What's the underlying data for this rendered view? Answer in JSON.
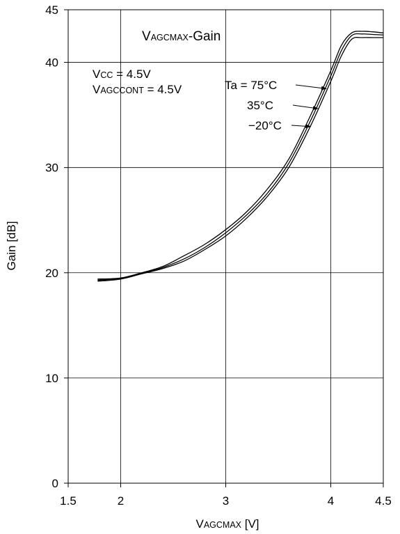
{
  "chart_data": {
    "type": "line",
    "title": {
      "main": "V",
      "sub": "AGCMAX",
      "suffix": "-Gain"
    },
    "xlabel": {
      "main": "V",
      "sub": "AGCMAX",
      "suffix": " [V]"
    },
    "ylabel": "Gain [dB]",
    "xlim": [
      1.5,
      4.5
    ],
    "ylim": [
      0,
      45
    ],
    "x_ticks": [
      "1.5",
      "2",
      "3",
      "4",
      "4.5"
    ],
    "x_tick_values": [
      1.5,
      2,
      3,
      4,
      4.5
    ],
    "y_ticks": [
      "0",
      "10",
      "20",
      "30",
      "40",
      "45"
    ],
    "y_tick_values": [
      0,
      10,
      20,
      30,
      40,
      45
    ],
    "grid": true,
    "conditions": [
      {
        "main": "V",
        "sub": "CC",
        "suffix": " = 4.5V"
      },
      {
        "main": "V",
        "sub": "AGCCONT",
        "suffix": " = 4.5V"
      }
    ],
    "series": [
      {
        "name": "Ta = 75°C",
        "values": [
          [
            1.78,
            19.4
          ],
          [
            2.0,
            19.5
          ],
          [
            2.2,
            20.0
          ],
          [
            2.4,
            20.6
          ],
          [
            2.6,
            21.6
          ],
          [
            2.8,
            22.7
          ],
          [
            3.0,
            24.1
          ],
          [
            3.2,
            25.8
          ],
          [
            3.4,
            28.0
          ],
          [
            3.6,
            30.8
          ],
          [
            3.8,
            34.8
          ],
          [
            4.0,
            39.2
          ],
          [
            4.1,
            41.6
          ],
          [
            4.2,
            42.8
          ],
          [
            4.3,
            42.95
          ],
          [
            4.4,
            42.9
          ],
          [
            4.5,
            42.8
          ]
        ]
      },
      {
        "name": "35°C",
        "values": [
          [
            1.78,
            19.3
          ],
          [
            2.0,
            19.45
          ],
          [
            2.2,
            19.95
          ],
          [
            2.4,
            20.5
          ],
          [
            2.6,
            21.3
          ],
          [
            2.8,
            22.4
          ],
          [
            3.0,
            23.8
          ],
          [
            3.2,
            25.5
          ],
          [
            3.4,
            27.6
          ],
          [
            3.6,
            30.4
          ],
          [
            3.8,
            34.3
          ],
          [
            4.0,
            38.7
          ],
          [
            4.1,
            41.1
          ],
          [
            4.2,
            42.55
          ],
          [
            4.3,
            42.7
          ],
          [
            4.4,
            42.65
          ],
          [
            4.5,
            42.6
          ]
        ]
      },
      {
        "name": "−20°C",
        "values": [
          [
            1.78,
            19.2
          ],
          [
            2.0,
            19.4
          ],
          [
            2.2,
            19.9
          ],
          [
            2.4,
            20.4
          ],
          [
            2.6,
            21.1
          ],
          [
            2.8,
            22.2
          ],
          [
            3.0,
            23.5
          ],
          [
            3.2,
            25.2
          ],
          [
            3.4,
            27.3
          ],
          [
            3.6,
            30.0
          ],
          [
            3.8,
            33.8
          ],
          [
            4.0,
            38.2
          ],
          [
            4.1,
            40.6
          ],
          [
            4.2,
            42.2
          ],
          [
            4.3,
            42.35
          ],
          [
            4.4,
            42.35
          ],
          [
            4.5,
            42.35
          ]
        ]
      }
    ],
    "annotations": [
      {
        "text": "Ta = 75°C",
        "series": 0,
        "x": 3.97,
        "y": 37.5
      },
      {
        "text": "35°C",
        "series": 1,
        "x": 3.89,
        "y": 35.6
      },
      {
        "text": "−20°C",
        "series": 2,
        "x": 3.82,
        "y": 33.9
      }
    ]
  }
}
